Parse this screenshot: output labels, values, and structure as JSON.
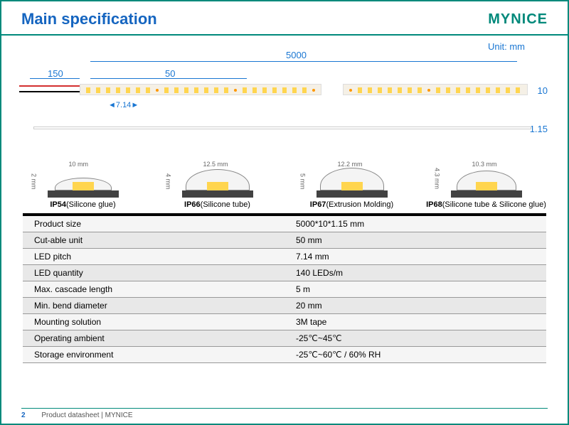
{
  "header": {
    "title": "Main specification",
    "brand": "MYNICE"
  },
  "diagram": {
    "unit_label": "Unit: mm",
    "dim_5000": "5000",
    "dim_150": "150",
    "dim_50": "50",
    "dim_714": "7.14",
    "dim_10": "10",
    "dim_115": "1.15",
    "strip_color": "#f5f0e6",
    "led_color": "#ffd54f",
    "dim_color": "#1976d2"
  },
  "profiles": [
    {
      "width_label": "10 mm",
      "height_label": "2 mm",
      "name": "IP54",
      "desc": "(Silicone glue)"
    },
    {
      "width_label": "12.5 mm",
      "height_label": "4 mm",
      "name": "IP66",
      "desc": "(Silicone tube)"
    },
    {
      "width_label": "12.2 mm",
      "height_label": "5 mm",
      "name": "IP67",
      "desc": "(Extrusion Molding)"
    },
    {
      "width_label": "10.3 mm",
      "height_label": "4.3 mm",
      "name": "IP68",
      "desc": "(Silicone tube & Silicone glue)"
    }
  ],
  "spec_table": {
    "rows": [
      {
        "label": "Product size",
        "value": "5000*10*1.15 mm"
      },
      {
        "label": "Cut-able unit",
        "value": "50 mm"
      },
      {
        "label": "LED pitch",
        "value": "7.14 mm"
      },
      {
        "label": "LED quantity",
        "value": "140 LEDs/m"
      },
      {
        "label": "Max. cascade length",
        "value": "5 m"
      },
      {
        "label": "Min. bend diameter",
        "value": "20 mm"
      },
      {
        "label": "Mounting solution",
        "value": "3M tape"
      },
      {
        "label": "Operating ambient",
        "value": "-25℃~45℃"
      },
      {
        "label": "Storage environment",
        "value": "-25℃~60℃ / 60% RH"
      }
    ]
  },
  "footer": {
    "page": "2",
    "text": "Product datasheet | MYNICE"
  }
}
